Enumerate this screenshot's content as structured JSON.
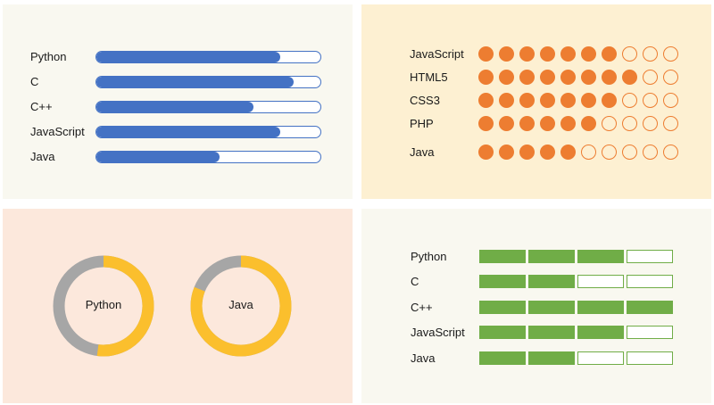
{
  "panel_bars": {
    "items": [
      {
        "label": "Python",
        "level": 0.82
      },
      {
        "label": "C",
        "level": 0.88
      },
      {
        "label": "C++",
        "level": 0.7
      },
      {
        "label": "JavaScript",
        "level": 0.82
      },
      {
        "label": "Java",
        "level": 0.55
      }
    ],
    "color": "#4472c4"
  },
  "panel_dots": {
    "items": [
      {
        "label": "JavaScript",
        "filled": 7,
        "total": 10
      },
      {
        "label": "HTML5",
        "filled": 8,
        "total": 10
      },
      {
        "label": "CSS3",
        "filled": 7,
        "total": 10
      },
      {
        "label": "PHP",
        "filled": 6,
        "total": 10
      },
      {
        "label": "Java",
        "filled": 5,
        "total": 10
      }
    ],
    "color": "#ed7d31"
  },
  "panel_donuts": {
    "items": [
      {
        "label": "Python",
        "level": 0.52
      },
      {
        "label": "Java",
        "level": 0.81
      }
    ],
    "fill_color": "#fbbf2d",
    "track_color": "#a6a6a6"
  },
  "panel_segments": {
    "items": [
      {
        "label": "Python",
        "filled": 3,
        "total": 4
      },
      {
        "label": "C",
        "filled": 2,
        "total": 4
      },
      {
        "label": "C++",
        "filled": 4,
        "total": 4
      },
      {
        "label": "JavaScript",
        "filled": 3,
        "total": 4
      },
      {
        "label": "Java",
        "filled": 2,
        "total": 4
      }
    ],
    "color": "#70ad47"
  }
}
